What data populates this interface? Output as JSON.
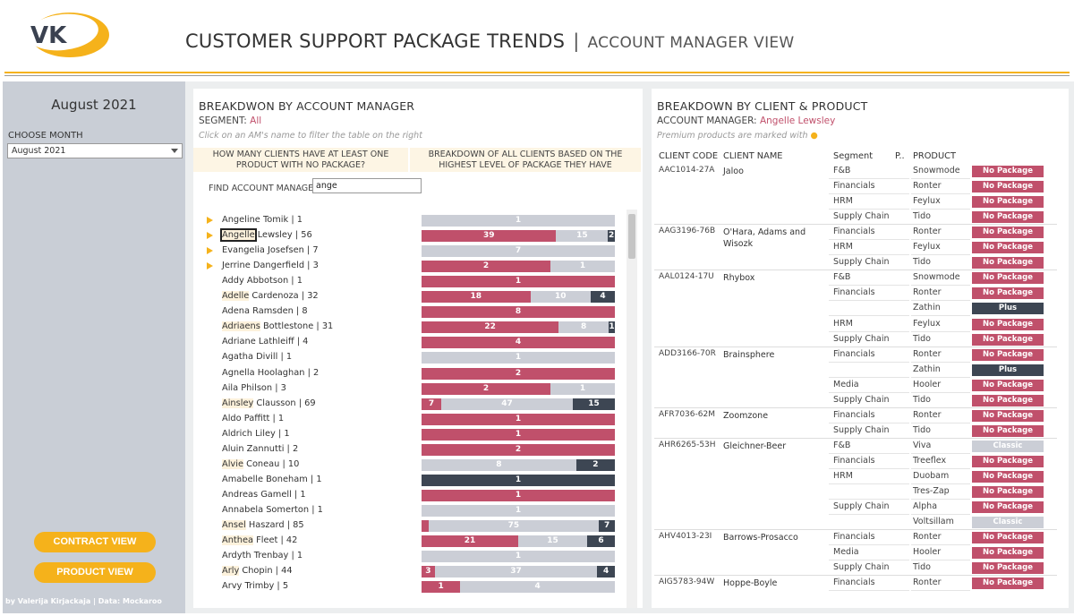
{
  "header": {
    "logo_text": "VK",
    "title": "CUSTOMER SUPPORT PACKAGE TRENDS",
    "separator": "|",
    "subtitle": "ACCOUNT MANAGER VIEW"
  },
  "colors": {
    "accent": "#f5b21b",
    "no_package": "#c0506b",
    "classic": "#cbced6",
    "plus": "#3d4653",
    "sidebar": "#c9ced6"
  },
  "sidebar": {
    "month_title": "August 2021",
    "choose_label": "CHOOSE MONTH",
    "selected_month": "August 2021",
    "contract_button": "CONTRACT VIEW",
    "product_button": "PRODUCT VIEW",
    "credit": "by Valerija Kirjackaja | Data: Mockaroo"
  },
  "left_panel": {
    "title": "BREAKDWON BY ACCOUNT MANAGER",
    "segment_label": "SEGMENT:",
    "segment_value": "All",
    "hint": "Click on an AM's name to filter the table on the right",
    "col1_header": "HOW MANY CLIENTS HAVE AT LEAST ONE PRODUCT WITH NO PACKAGE?",
    "col2_header": "BREAKDOWN OF ALL CLIENTS BASED ON THE HIGHEST LEVEL OF PACKAGE THEY HAVE",
    "find_label": "FIND ACCOUNT MANAGER:",
    "find_value": "ange",
    "managers": [
      {
        "pre": "",
        "hl": "",
        "post": "Angeline Tomik",
        "count": "1",
        "arrow": true,
        "bars": [
          0,
          1,
          0
        ]
      },
      {
        "pre": "",
        "hl": "Angelle",
        "post": " Lewsley",
        "count": "56",
        "arrow": true,
        "selected": true,
        "bars": [
          39,
          15,
          2
        ]
      },
      {
        "pre": "",
        "hl": "",
        "post": "Evangelia Josefsen",
        "count": "7",
        "arrow": true,
        "bars": [
          0,
          7,
          0
        ]
      },
      {
        "pre": "",
        "hl": "",
        "post": "Jerrine Dangerfield",
        "count": "3",
        "arrow": true,
        "bars": [
          2,
          1,
          0
        ]
      },
      {
        "pre": "",
        "hl": "",
        "post": "Addy Abbotson",
        "count": "1",
        "bars": [
          1,
          0,
          0
        ]
      },
      {
        "pre": "",
        "hl": "Adelle",
        "post": " Cardenoza",
        "count": "32",
        "bars": [
          18,
          10,
          4
        ]
      },
      {
        "pre": "",
        "hl": "",
        "post": "Adena Ramsden",
        "count": "8",
        "bars": [
          8,
          0,
          0
        ]
      },
      {
        "pre": "",
        "hl": "Adriaens",
        "post": " Bottlestone",
        "count": "31",
        "bars": [
          22,
          8,
          1
        ]
      },
      {
        "pre": "",
        "hl": "",
        "post": "Adriane Lathleiff",
        "count": "4",
        "bars": [
          4,
          0,
          0
        ]
      },
      {
        "pre": "",
        "hl": "",
        "post": "Agatha Divill",
        "count": "1",
        "bars": [
          0,
          1,
          0
        ]
      },
      {
        "pre": "",
        "hl": "",
        "post": "Agnella Hoolaghan",
        "count": "2",
        "bars": [
          2,
          0,
          0
        ]
      },
      {
        "pre": "",
        "hl": "",
        "post": "Aila Philson",
        "count": "3",
        "bars": [
          2,
          1,
          0
        ]
      },
      {
        "pre": "",
        "hl": "Ainsley",
        "post": " Clausson",
        "count": "69",
        "bars": [
          7,
          47,
          15
        ]
      },
      {
        "pre": "",
        "hl": "",
        "post": "Aldo Paffitt",
        "count": "1",
        "bars": [
          1,
          0,
          0
        ]
      },
      {
        "pre": "",
        "hl": "",
        "post": "Aldrich Liley",
        "count": "1",
        "bars": [
          1,
          0,
          0
        ]
      },
      {
        "pre": "",
        "hl": "",
        "post": "Aluin Zannutti",
        "count": "2",
        "bars": [
          2,
          0,
          0
        ]
      },
      {
        "pre": "",
        "hl": "Alvie",
        "post": " Coneau",
        "count": "10",
        "bars": [
          0,
          8,
          2
        ]
      },
      {
        "pre": "",
        "hl": "",
        "post": "Amabelle Boneham",
        "count": "1",
        "bars": [
          0,
          0,
          1
        ]
      },
      {
        "pre": "",
        "hl": "",
        "post": "Andreas Gamell",
        "count": "1",
        "bars": [
          1,
          0,
          0
        ]
      },
      {
        "pre": "",
        "hl": "",
        "post": "Annabela Somerton",
        "count": "1",
        "bars": [
          0,
          1,
          0
        ]
      },
      {
        "pre": "",
        "hl": "Ansel",
        "post": " Haszard",
        "count": "85",
        "bars": [
          3,
          75,
          7
        ],
        "hide_first": true
      },
      {
        "pre": "",
        "hl": "Anthea",
        "post": " Fleet",
        "count": "42",
        "bars": [
          21,
          15,
          6
        ]
      },
      {
        "pre": "",
        "hl": "",
        "post": "Ardyth Trenbay",
        "count": "1",
        "bars": [
          0,
          1,
          0
        ]
      },
      {
        "pre": "",
        "hl": "Arly",
        "post": " Chopin",
        "count": "44",
        "bars": [
          3,
          37,
          4
        ]
      },
      {
        "pre": "",
        "hl": "",
        "post": "Arvy Trimby",
        "count": "5",
        "bars": [
          1,
          4,
          0
        ]
      }
    ]
  },
  "right_panel": {
    "title": "BREAKDOWN BY CLIENT & PRODUCT",
    "am_label": "ACCOUNT MANAGER:",
    "am_value": "Angelle Lewsley",
    "hint": "Premium products are marked with",
    "hint_dot": "●",
    "headers": {
      "code": "CLIENT CODE",
      "name": "CLIENT NAME",
      "segment": "Segment",
      "p": "P..",
      "product": "PRODUCT"
    },
    "rows": [
      {
        "code": "AAC1014-27A",
        "name": "Jaloo",
        "segment": "F&B",
        "product": "Snowmode",
        "pkg": "No Package",
        "first": true
      },
      {
        "segment": "Financials",
        "product": "Ronter",
        "pkg": "No Package"
      },
      {
        "segment": "HRM",
        "product": "Feylux",
        "pkg": "No Package"
      },
      {
        "segment": "Supply Chain",
        "product": "Tido",
        "pkg": "No Package"
      },
      {
        "code": "AAG3196-76B",
        "name": "O'Hara, Adams and Wisozk",
        "segment": "Financials",
        "product": "Ronter",
        "pkg": "No Package",
        "first": true
      },
      {
        "segment": "HRM",
        "product": "Feylux",
        "pkg": "No Package"
      },
      {
        "segment": "Supply Chain",
        "product": "Tido",
        "pkg": "No Package"
      },
      {
        "code": "AAL0124-17U",
        "name": "Rhybox",
        "segment": "F&B",
        "product": "Snowmode",
        "pkg": "No Package",
        "first": true
      },
      {
        "segment": "Financials",
        "product": "Ronter",
        "pkg": "No Package"
      },
      {
        "segment": "",
        "product": "Zathin",
        "pkg": "Plus"
      },
      {
        "segment": "HRM",
        "product": "Feylux",
        "pkg": "No Package"
      },
      {
        "segment": "Supply Chain",
        "product": "Tido",
        "pkg": "No Package"
      },
      {
        "code": "ADD3166-70R",
        "name": "Brainsphere",
        "segment": "Financials",
        "product": "Ronter",
        "pkg": "No Package",
        "first": true
      },
      {
        "segment": "",
        "product": "Zathin",
        "pkg": "Plus"
      },
      {
        "segment": "Media",
        "product": "Hooler",
        "pkg": "No Package"
      },
      {
        "segment": "Supply Chain",
        "product": "Tido",
        "pkg": "No Package"
      },
      {
        "code": "AFR7036-62M",
        "name": "Zoomzone",
        "segment": "Financials",
        "product": "Ronter",
        "pkg": "No Package",
        "first": true
      },
      {
        "segment": "Supply Chain",
        "product": "Tido",
        "pkg": "No Package"
      },
      {
        "code": "AHR6265-53H",
        "name": "Gleichner-Beer",
        "segment": "F&B",
        "product": "Viva",
        "pkg": "Classic",
        "first": true
      },
      {
        "segment": "Financials",
        "product": "Treeflex",
        "pkg": "No Package"
      },
      {
        "segment": "HRM",
        "product": "Duobam",
        "pkg": "No Package"
      },
      {
        "segment": "",
        "product": "Tres-Zap",
        "pkg": "No Package"
      },
      {
        "segment": "Supply Chain",
        "product": "Alpha",
        "pkg": "No Package"
      },
      {
        "segment": "",
        "product": "Voltsillam",
        "pkg": "Classic"
      },
      {
        "code": "AHV4013-23I",
        "name": "Barrows-Prosacco",
        "segment": "Financials",
        "product": "Ronter",
        "pkg": "No Package",
        "first": true
      },
      {
        "segment": "Media",
        "product": "Hooler",
        "pkg": "No Package"
      },
      {
        "segment": "Supply Chain",
        "product": "Tido",
        "pkg": "No Package"
      },
      {
        "code": "AIG5783-94W",
        "name": "Hoppe-Boyle",
        "segment": "Financials",
        "product": "Ronter",
        "pkg": "No Package",
        "first": true
      }
    ]
  }
}
